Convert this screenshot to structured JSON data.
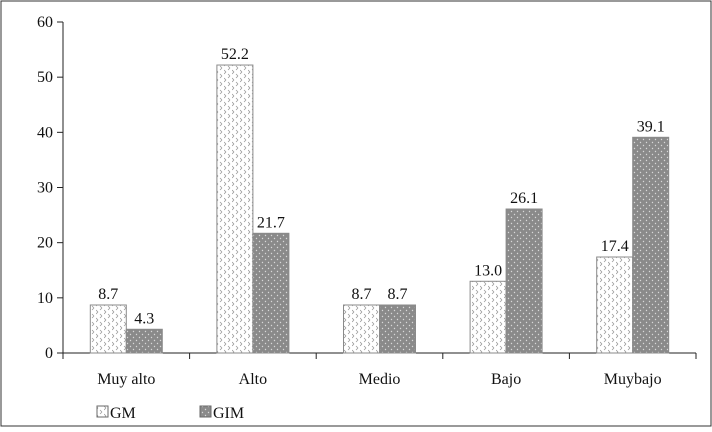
{
  "chart_data": {
    "type": "bar",
    "categories": [
      "Muy alto",
      "Alto",
      "Medio",
      "Bajo",
      "Muybajo"
    ],
    "series": [
      {
        "name": "GM",
        "values": [
          8.7,
          52.2,
          8.7,
          13.0,
          17.4
        ],
        "labels": [
          "8.7",
          "52.2",
          "8.7",
          "13.0",
          "17.4"
        ],
        "color": "#ffffff",
        "pattern": "light-hatch"
      },
      {
        "name": "GIM",
        "values": [
          4.3,
          21.7,
          8.7,
          26.1,
          39.1
        ],
        "labels": [
          "4.3",
          "21.7",
          "8.7",
          "26.1",
          "39.1"
        ],
        "color": "#8c8c8c",
        "pattern": "dark-dots"
      }
    ],
    "ylim": [
      0,
      60
    ],
    "yticks": [
      "0",
      "10",
      "20",
      "30",
      "40",
      "50",
      "60"
    ],
    "grid": false,
    "legend": "bottom-left",
    "title": "",
    "xlabel": "",
    "ylabel": ""
  }
}
